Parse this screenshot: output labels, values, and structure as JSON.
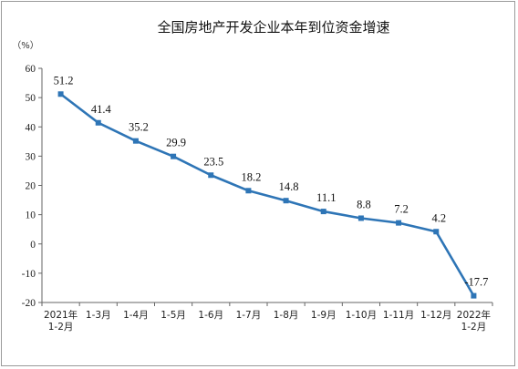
{
  "chart_data": {
    "type": "line",
    "title": "全国房地产开发企业本年到位资金增速",
    "y_unit": "（%）",
    "categories": [
      [
        "2021年",
        "1-2月"
      ],
      [
        "1-3月"
      ],
      [
        "1-4月"
      ],
      [
        "1-5月"
      ],
      [
        "1-6月"
      ],
      [
        "1-7月"
      ],
      [
        "1-8月"
      ],
      [
        "1-9月"
      ],
      [
        "1-10月"
      ],
      [
        "1-11月"
      ],
      [
        "1-12月"
      ],
      [
        "2022年",
        "1-2月"
      ]
    ],
    "values": [
      51.2,
      41.4,
      35.2,
      29.9,
      23.5,
      18.2,
      14.8,
      11.1,
      8.8,
      7.2,
      4.2,
      -17.7
    ],
    "data_labels": [
      "51.2",
      "41.4",
      "35.2",
      "29.9",
      "23.5",
      "18.2",
      "14.8",
      "11.1",
      "8.8",
      "7.2",
      "4.2",
      "-17.7"
    ],
    "ylim": [
      -20,
      60
    ],
    "yticks": [
      "60",
      "50",
      "40",
      "30",
      "20",
      "10",
      "0",
      "-10",
      "-20"
    ],
    "ytick_values": [
      60,
      50,
      40,
      30,
      20,
      10,
      0,
      -10,
      -20
    ],
    "grid": false,
    "line_color": "#2e75b6"
  }
}
